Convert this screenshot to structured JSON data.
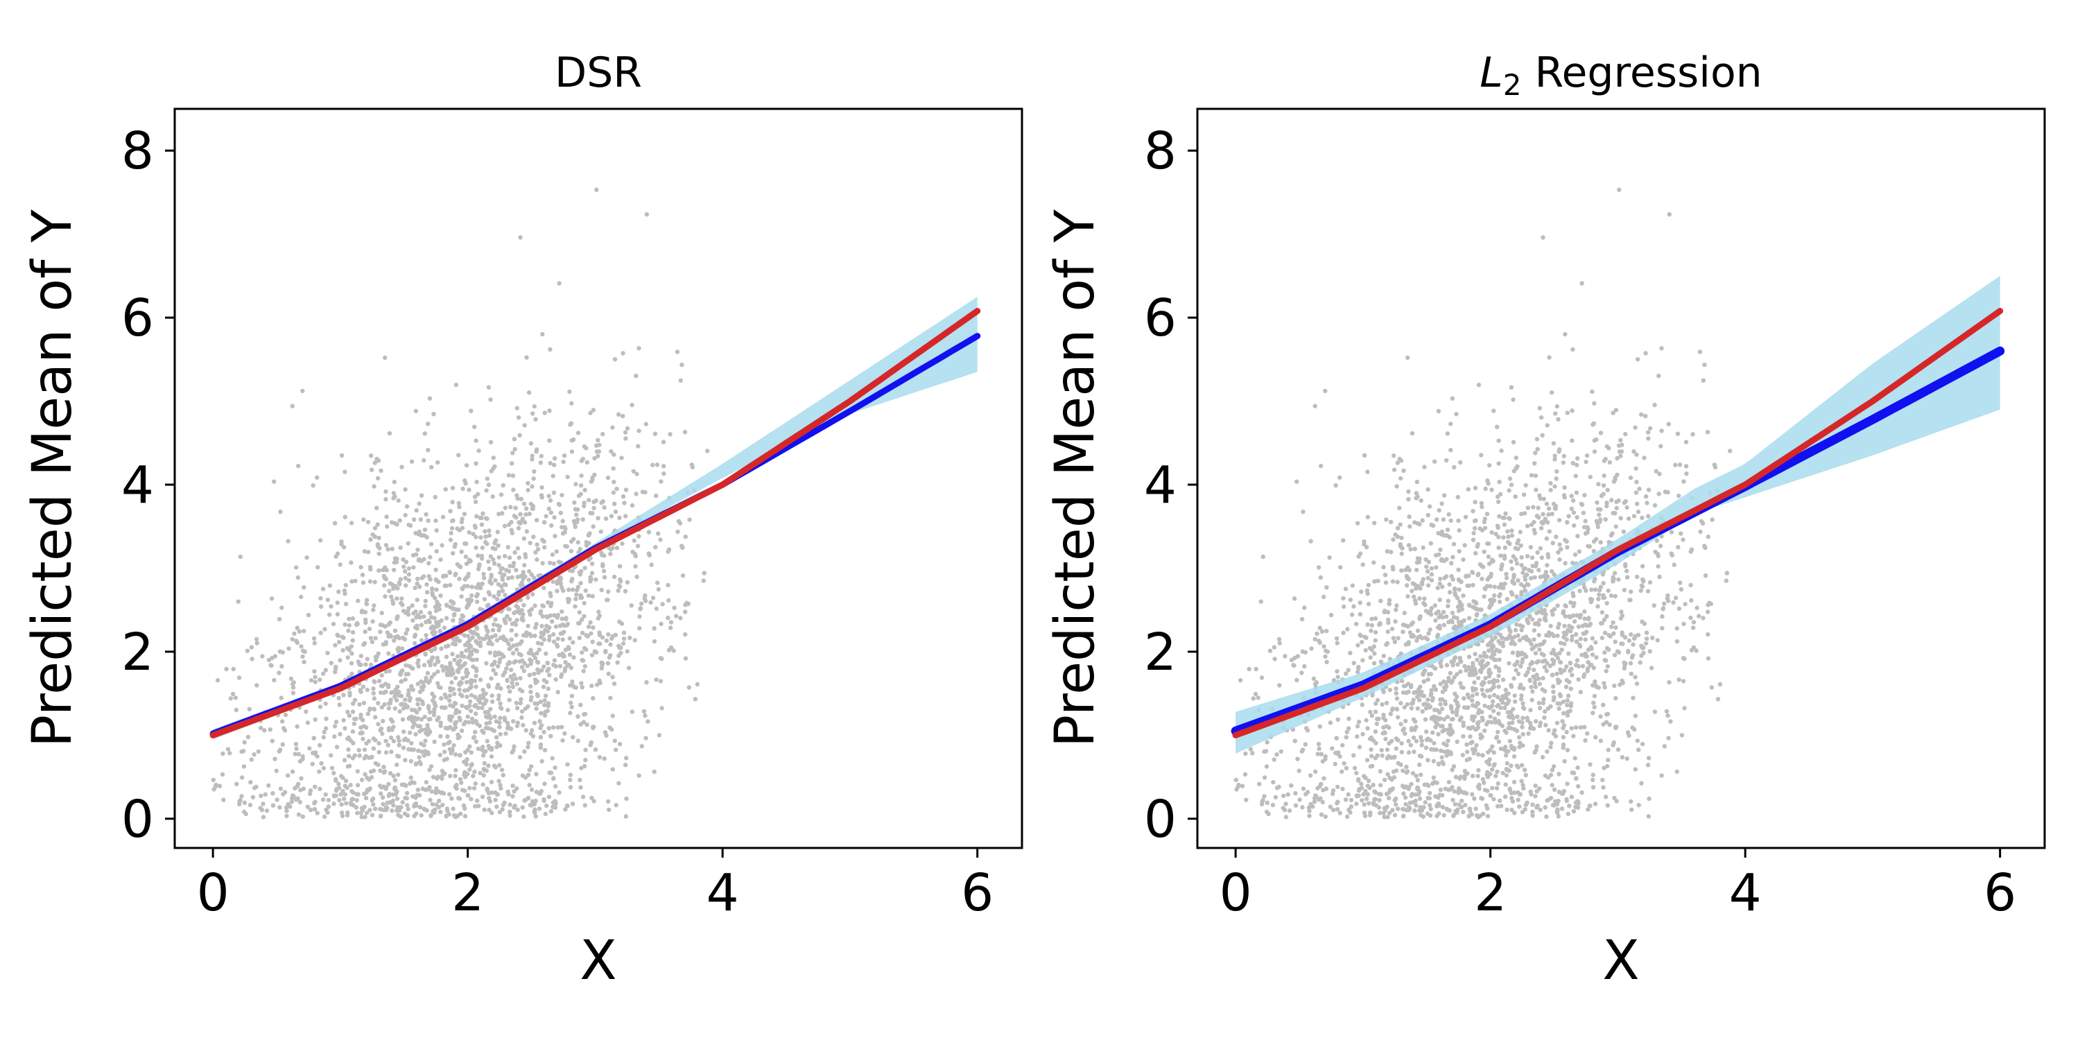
{
  "chart_data": [
    {
      "type": "scatter",
      "title": "DSR",
      "title_subscript": "",
      "title_tail": "",
      "xlabel": "X",
      "ylabel": "Predicted Mean of Y",
      "xlim": [
        -0.3,
        6.35
      ],
      "ylim": [
        -0.35,
        8.5
      ],
      "xticks": [
        0,
        2,
        4,
        6
      ],
      "yticks": [
        0,
        2,
        4,
        6,
        8
      ],
      "xtick_labels": [
        "0",
        "2",
        "4",
        "6"
      ],
      "ytick_labels": [
        "0",
        "2",
        "4",
        "6",
        "8"
      ],
      "grid": false,
      "legend": "none",
      "series": [
        {
          "name": "observations",
          "kind": "scatter",
          "color": "#bdbdbd",
          "x_range": [
            0,
            3.9
          ],
          "count": 2600
        },
        {
          "name": "prediction interval",
          "kind": "band",
          "color": "#a8dcef",
          "x": [
            0,
            1,
            2,
            3,
            3.6,
            4,
            5,
            6
          ],
          "lower": [
            0.95,
            1.53,
            2.28,
            3.18,
            3.75,
            4.08,
            4.85,
            5.35
          ],
          "upper": [
            1.07,
            1.63,
            2.38,
            3.3,
            3.87,
            4.25,
            5.25,
            6.25
          ]
        },
        {
          "name": "predicted mean",
          "kind": "line",
          "color": "#1010f0",
          "x": [
            0,
            1,
            2,
            3,
            4,
            5,
            6
          ],
          "y": [
            1.02,
            1.59,
            2.33,
            3.24,
            4.0,
            4.88,
            5.78
          ]
        },
        {
          "name": "true mean",
          "kind": "line",
          "color": "#d62728",
          "x": [
            0,
            1,
            2,
            3,
            4,
            5,
            6
          ],
          "y": [
            1.0,
            1.56,
            2.3,
            3.22,
            4.0,
            5.0,
            6.08
          ]
        }
      ]
    },
    {
      "type": "scatter",
      "title": "L",
      "title_subscript": "2",
      "title_tail": " Regression",
      "xlabel": "X",
      "ylabel": "Predicted Mean of Y",
      "xlim": [
        -0.3,
        6.35
      ],
      "ylim": [
        -0.35,
        8.5
      ],
      "xticks": [
        0,
        2,
        4,
        6
      ],
      "yticks": [
        0,
        2,
        4,
        6,
        8
      ],
      "xtick_labels": [
        "0",
        "2",
        "4",
        "6"
      ],
      "ytick_labels": [
        "0",
        "2",
        "4",
        "6",
        "8"
      ],
      "grid": false,
      "legend": "none",
      "series": [
        {
          "name": "observations",
          "kind": "scatter",
          "color": "#bdbdbd",
          "x_range": [
            0,
            3.9
          ],
          "count": 2600
        },
        {
          "name": "prediction interval",
          "kind": "band",
          "color": "#a8dcef",
          "x": [
            0,
            1,
            2,
            3,
            3.6,
            4,
            5,
            6
          ],
          "lower": [
            0.78,
            1.45,
            2.18,
            3.05,
            3.65,
            3.85,
            4.35,
            4.9
          ],
          "upper": [
            1.28,
            1.75,
            2.45,
            3.35,
            3.95,
            4.25,
            5.45,
            6.5
          ]
        },
        {
          "name": "predicted mean",
          "kind": "line",
          "color": "#1010f0",
          "x": [
            0,
            1,
            2,
            3,
            4,
            5,
            6
          ],
          "y": [
            1.05,
            1.6,
            2.32,
            3.2,
            3.98,
            4.78,
            5.6
          ]
        },
        {
          "name": "true mean",
          "kind": "line",
          "color": "#d62728",
          "x": [
            0,
            1,
            2,
            3,
            4,
            5,
            6
          ],
          "y": [
            1.0,
            1.56,
            2.3,
            3.22,
            4.0,
            5.0,
            6.08
          ]
        }
      ]
    }
  ]
}
